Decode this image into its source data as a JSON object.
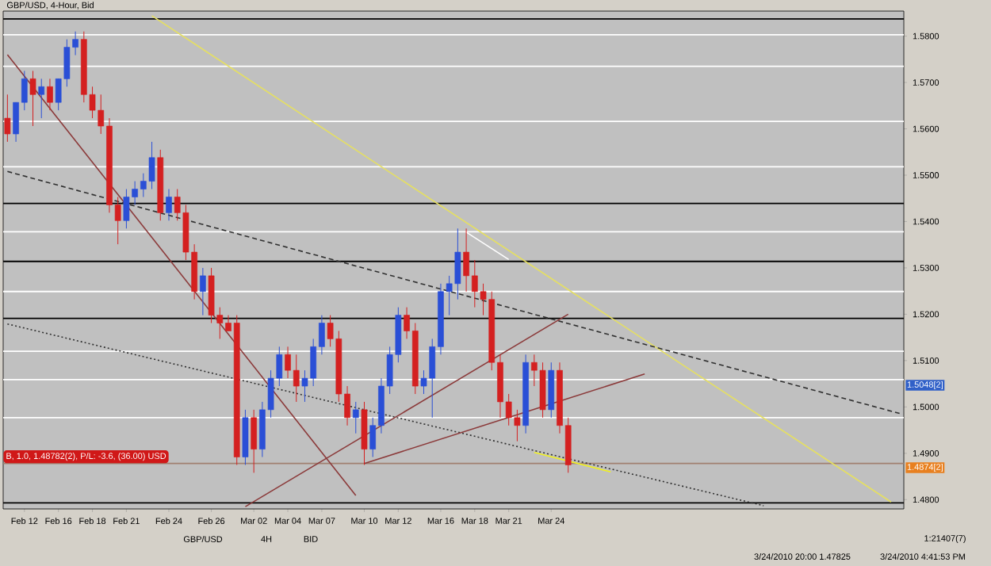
{
  "chart_data": {
    "type": "candlestick",
    "title": "GBP/USD, 4-Hour, Bid",
    "categories": [
      null,
      null,
      "Feb 12",
      null,
      null,
      null,
      "Feb 16",
      null,
      null,
      null,
      "Feb 18",
      null,
      null,
      null,
      "Feb 21",
      null,
      null,
      null,
      null,
      "Feb 24",
      null,
      null,
      null,
      null,
      "Feb 26",
      null,
      null,
      null,
      null,
      "Mar 02",
      null,
      null,
      null,
      "Mar 04",
      null,
      null,
      null,
      "Mar 07",
      null,
      null,
      null,
      null,
      "Mar 10",
      null,
      null,
      null,
      "Mar 12",
      null,
      null,
      null,
      null,
      "Mar 16",
      null,
      null,
      null,
      "Mar 18",
      null,
      null,
      null,
      "Mar 21",
      null,
      null,
      null,
      null,
      "Mar 24",
      null,
      null,
      null,
      null,
      null,
      null,
      null,
      null,
      null,
      null,
      null,
      null,
      null,
      null,
      null,
      null,
      null,
      null,
      null,
      null,
      null,
      null,
      null,
      null,
      null,
      null,
      null,
      null,
      null,
      null,
      null,
      null,
      null,
      null,
      null,
      null,
      null,
      null,
      null,
      null,
      null
    ],
    "ohlc": [
      [
        1.5623,
        1.5674,
        1.5572,
        1.5589
      ],
      [
        1.5589,
        1.5657,
        1.5572,
        1.5657
      ],
      [
        1.5657,
        1.5725,
        1.564,
        1.5708
      ],
      [
        1.5708,
        1.5725,
        1.5606,
        1.5674
      ],
      [
        1.5674,
        1.5708,
        1.5623,
        1.5691
      ],
      [
        1.5691,
        1.5708,
        1.564,
        1.5657
      ],
      [
        1.5657,
        1.5708,
        1.564,
        1.5708
      ],
      [
        1.5708,
        1.5793,
        1.5691,
        1.5776
      ],
      [
        1.5776,
        1.581,
        1.5759,
        1.5793
      ],
      [
        1.5793,
        1.581,
        1.5657,
        1.5674
      ],
      [
        1.5674,
        1.5691,
        1.5623,
        1.564
      ],
      [
        1.564,
        1.5674,
        1.5589,
        1.5606
      ],
      [
        1.5606,
        1.5623,
        1.5419,
        1.5436
      ],
      [
        1.5436,
        1.5453,
        1.5351,
        1.5402
      ],
      [
        1.5402,
        1.547,
        1.5385,
        1.5453
      ],
      [
        1.5453,
        1.5487,
        1.5436,
        1.547
      ],
      [
        1.547,
        1.5504,
        1.5453,
        1.5487
      ],
      [
        1.5487,
        1.5572,
        1.547,
        1.5538
      ],
      [
        1.5538,
        1.5555,
        1.5402,
        1.5419
      ],
      [
        1.5419,
        1.547,
        1.5402,
        1.5453
      ],
      [
        1.5453,
        1.547,
        1.5402,
        1.5419
      ],
      [
        1.5419,
        1.5436,
        1.5317,
        1.5334
      ],
      [
        1.5334,
        1.5351,
        1.5232,
        1.5249
      ],
      [
        1.5249,
        1.53,
        1.5198,
        1.5283
      ],
      [
        1.5283,
        1.53,
        1.5181,
        1.5198
      ],
      [
        1.5198,
        1.5215,
        1.5147,
        1.5181
      ],
      [
        1.5181,
        1.5198,
        1.5164,
        1.5164
      ],
      [
        1.5181,
        1.5198,
        1.4875,
        1.4892
      ],
      [
        1.4892,
        1.4994,
        1.4875,
        1.4977
      ],
      [
        1.4977,
        1.4994,
        1.4858,
        1.4909
      ],
      [
        1.4909,
        1.5011,
        1.4892,
        1.4994
      ],
      [
        1.4994,
        1.5079,
        1.4977,
        1.5062
      ],
      [
        1.5062,
        1.513,
        1.5045,
        1.5113
      ],
      [
        1.5113,
        1.513,
        1.5062,
        1.5079
      ],
      [
        1.5079,
        1.5113,
        1.5011,
        1.5045
      ],
      [
        1.5045,
        1.5079,
        1.5011,
        1.5062
      ],
      [
        1.5062,
        1.5147,
        1.5045,
        1.513
      ],
      [
        1.513,
        1.5198,
        1.5113,
        1.5181
      ],
      [
        1.5181,
        1.5198,
        1.513,
        1.5147
      ],
      [
        1.5147,
        1.5164,
        1.5011,
        1.5028
      ],
      [
        1.5028,
        1.5045,
        1.496,
        1.4977
      ],
      [
        1.4977,
        1.5011,
        1.4943,
        1.4994
      ],
      [
        1.4994,
        1.5011,
        1.4875,
        1.4909
      ],
      [
        1.4909,
        1.4977,
        1.4892,
        1.496
      ],
      [
        1.496,
        1.5062,
        1.4943,
        1.5045
      ],
      [
        1.5045,
        1.513,
        1.5028,
        1.5113
      ],
      [
        1.5113,
        1.5215,
        1.5096,
        1.5198
      ],
      [
        1.5198,
        1.5215,
        1.5147,
        1.5164
      ],
      [
        1.5164,
        1.5181,
        1.5028,
        1.5045
      ],
      [
        1.5045,
        1.5079,
        1.5028,
        1.5062
      ],
      [
        1.5062,
        1.5147,
        1.4977,
        1.513
      ],
      [
        1.513,
        1.5266,
        1.5113,
        1.5249
      ],
      [
        1.5249,
        1.5283,
        1.5198,
        1.5266
      ],
      [
        1.5266,
        1.5385,
        1.5232,
        1.5334
      ],
      [
        1.5334,
        1.5385,
        1.5249,
        1.5283
      ],
      [
        1.5283,
        1.5317,
        1.5215,
        1.5249
      ],
      [
        1.5249,
        1.5266,
        1.5198,
        1.5232
      ],
      [
        1.5232,
        1.5249,
        1.5079,
        1.5096
      ],
      [
        1.5096,
        1.5113,
        1.4977,
        1.5011
      ],
      [
        1.5011,
        1.5028,
        1.496,
        1.4977
      ],
      [
        1.4977,
        1.4994,
        1.4926,
        1.496
      ],
      [
        1.496,
        1.5113,
        1.4943,
        1.5096
      ],
      [
        1.5096,
        1.5113,
        1.5045,
        1.5079
      ],
      [
        1.5079,
        1.5096,
        1.4977,
        1.4994
      ],
      [
        1.4994,
        1.5096,
        1.4977,
        1.5079
      ],
      [
        1.5079,
        1.5096,
        1.4943,
        1.496
      ],
      [
        1.496,
        1.4977,
        1.4858,
        1.4875
      ],
      null,
      null,
      null,
      null,
      null,
      null,
      null,
      null,
      null,
      null,
      null,
      null,
      null,
      null,
      null,
      null,
      null,
      null,
      null,
      null,
      null,
      null,
      null,
      null,
      null,
      null,
      null,
      null,
      null,
      null,
      null,
      null,
      null,
      null,
      null,
      null,
      null,
      null,
      null
    ],
    "colors": [
      "#d42020",
      "#2a4fd6",
      "#2a4fd6",
      "#d42020",
      "#2a4fd6",
      "#d42020",
      "#2a4fd6",
      "#2a4fd6",
      "#2a4fd6",
      "#d42020",
      "#d42020",
      "#d42020",
      "#d42020",
      "#d42020",
      "#2a4fd6",
      "#2a4fd6",
      "#2a4fd6",
      "#2a4fd6",
      "#d42020",
      "#2a4fd6",
      "#d42020",
      "#d42020",
      "#d42020",
      "#2a4fd6",
      "#d42020",
      "#d42020",
      "#d42020",
      "#d42020",
      "#2a4fd6",
      "#d42020",
      "#2a4fd6",
      "#2a4fd6",
      "#2a4fd6",
      "#d42020",
      "#d42020",
      "#2a4fd6",
      "#2a4fd6",
      "#2a4fd6",
      "#d42020",
      "#d42020",
      "#d42020",
      "#2a4fd6",
      "#d42020",
      "#2a4fd6",
      "#2a4fd6",
      "#2a4fd6",
      "#2a4fd6",
      "#d42020",
      "#d42020",
      "#2a4fd6",
      "#2a4fd6",
      "#2a4fd6",
      "#2a4fd6",
      "#2a4fd6",
      "#d42020",
      "#d42020",
      "#d42020",
      "#d42020",
      "#d42020",
      "#d42020",
      "#d42020",
      "#2a4fd6",
      "#d42020",
      "#d42020",
      "#2a4fd6",
      "#d42020",
      "#d42020",
      null,
      null,
      null,
      null,
      null,
      null,
      null,
      null,
      null,
      null,
      null,
      null,
      null,
      null,
      null,
      null,
      null,
      null,
      null,
      null,
      null,
      null,
      null,
      null,
      null,
      null,
      null,
      null,
      null,
      null,
      null,
      null,
      null,
      null,
      null,
      null,
      null,
      null,
      null
    ],
    "series": [
      {
        "type": "line",
        "color": "#e6e060",
        "line_style": "solid",
        "values": [
          null,
          null,
          null,
          null,
          null,
          null,
          null,
          null,
          null,
          null,
          null,
          null,
          null,
          null,
          null,
          null,
          null,
          1.5844,
          null,
          null,
          null,
          null,
          null,
          null,
          null,
          null,
          null,
          null,
          null,
          null,
          null,
          null,
          null,
          null,
          null,
          null,
          null,
          null,
          null,
          null,
          null,
          null,
          null,
          null,
          null,
          null,
          null,
          null,
          null,
          null,
          null,
          null,
          null,
          null,
          null,
          null,
          null,
          null,
          null,
          null,
          null,
          null,
          null,
          null,
          null,
          null,
          null,
          null,
          null,
          null,
          null,
          null,
          null,
          null,
          null,
          null,
          null,
          null,
          null,
          null,
          null,
          null,
          null,
          null,
          null,
          null,
          null,
          null,
          null,
          null,
          null,
          null,
          null,
          null,
          null,
          null,
          null,
          null,
          null,
          null,
          null,
          null,
          null,
          null,
          1.4795,
          null
        ]
      },
      {
        "type": "line",
        "color": "#303030",
        "line_style": "dashed",
        "values": [
          1.5508,
          null,
          null,
          null,
          null,
          null,
          null,
          null,
          null,
          null,
          null,
          null,
          null,
          null,
          null,
          null,
          null,
          null,
          null,
          null,
          null,
          null,
          null,
          null,
          null,
          null,
          null,
          null,
          null,
          null,
          null,
          null,
          null,
          null,
          null,
          null,
          null,
          null,
          null,
          null,
          null,
          null,
          null,
          null,
          null,
          null,
          null,
          null,
          null,
          null,
          null,
          null,
          null,
          null,
          null,
          null,
          null,
          null,
          null,
          null,
          null,
          null,
          null,
          null,
          null,
          null,
          null,
          null,
          null,
          null,
          null,
          null,
          null,
          null,
          null,
          null,
          null,
          null,
          null,
          null,
          null,
          null,
          null,
          null,
          null,
          null,
          null,
          null,
          null,
          null,
          null,
          null,
          null,
          null,
          null,
          null,
          null,
          null,
          null,
          null,
          null,
          null,
          null,
          null,
          null,
          1.4986
        ]
      },
      {
        "type": "line",
        "color": "#303030",
        "line_style": "dotted",
        "values": [
          1.5179,
          null,
          null,
          null,
          null,
          null,
          null,
          null,
          null,
          null,
          null,
          null,
          null,
          null,
          null,
          null,
          null,
          null,
          null,
          null,
          null,
          null,
          null,
          null,
          null,
          null,
          null,
          null,
          null,
          null,
          null,
          null,
          null,
          null,
          null,
          null,
          null,
          null,
          null,
          null,
          null,
          null,
          null,
          null,
          null,
          null,
          null,
          null,
          null,
          null,
          null,
          null,
          null,
          null,
          null,
          null,
          null,
          null,
          null,
          null,
          null,
          null,
          null,
          null,
          null,
          null,
          null,
          null,
          null,
          null,
          null,
          null,
          null,
          null,
          null,
          null,
          null,
          null,
          null,
          null,
          null,
          null,
          null,
          null,
          null,
          null,
          null,
          null,
          null,
          1.4787,
          null,
          null,
          null,
          null,
          null,
          null,
          null,
          null,
          null,
          null,
          null,
          null,
          null,
          null,
          null,
          null
        ]
      },
      {
        "type": "line",
        "color": "#8b3a3a",
        "line_style": "solid",
        "values": [
          1.576,
          null,
          null,
          null,
          null,
          null,
          null,
          null,
          null,
          null,
          null,
          null,
          null,
          null,
          null,
          null,
          null,
          null,
          null,
          null,
          null,
          null,
          null,
          null,
          null,
          null,
          null,
          null,
          null,
          null,
          null,
          null,
          null,
          null,
          null,
          null,
          null,
          null,
          null,
          null,
          null,
          1.4809,
          null,
          null,
          null,
          null,
          null,
          null,
          null,
          null,
          null,
          null,
          null,
          null,
          null,
          null,
          null,
          null,
          null,
          null,
          null,
          null,
          null,
          null,
          null,
          null,
          null,
          null,
          null,
          null,
          null,
          null,
          null,
          null,
          null,
          null,
          null,
          null,
          null,
          null,
          null,
          null,
          null,
          null,
          null,
          null,
          null,
          null,
          null,
          null,
          null,
          null,
          null,
          null,
          null,
          null,
          null,
          null,
          null,
          null,
          null,
          null,
          null,
          null,
          null,
          null
        ]
      },
      {
        "type": "line",
        "color": "#8b3a3a",
        "line_style": "solid",
        "values": [
          null,
          null,
          null,
          null,
          null,
          null,
          null,
          null,
          null,
          null,
          null,
          null,
          null,
          null,
          null,
          null,
          null,
          null,
          null,
          null,
          null,
          null,
          null,
          null,
          null,
          null,
          null,
          null,
          1.4785,
          null,
          null,
          null,
          null,
          null,
          null,
          null,
          null,
          null,
          null,
          null,
          null,
          null,
          null,
          null,
          null,
          null,
          null,
          null,
          null,
          null,
          null,
          null,
          null,
          null,
          null,
          null,
          null,
          null,
          null,
          null,
          null,
          null,
          null,
          null,
          null,
          null,
          1.52,
          null,
          null,
          null,
          null,
          null,
          null,
          null,
          null,
          null,
          null,
          null,
          null,
          null,
          null,
          null,
          null,
          null,
          null,
          null,
          null,
          null,
          null,
          null,
          null,
          null,
          null,
          null,
          null,
          null,
          null,
          null,
          null,
          null,
          null,
          null,
          null,
          null,
          null,
          null
        ]
      },
      {
        "type": "line",
        "color": "#8b3a3a",
        "line_style": "solid",
        "values": [
          null,
          null,
          null,
          null,
          null,
          null,
          null,
          null,
          null,
          null,
          null,
          null,
          null,
          null,
          null,
          null,
          null,
          null,
          null,
          null,
          null,
          null,
          null,
          null,
          null,
          null,
          null,
          null,
          null,
          null,
          null,
          null,
          null,
          null,
          null,
          null,
          null,
          null,
          null,
          null,
          null,
          null,
          1.4878,
          null,
          null,
          null,
          null,
          null,
          null,
          null,
          null,
          null,
          null,
          null,
          null,
          null,
          null,
          null,
          null,
          null,
          null,
          null,
          null,
          null,
          null,
          null,
          null,
          null,
          null,
          null,
          null,
          null,
          null,
          null,
          null,
          1.5071,
          null,
          null,
          null,
          null,
          null,
          null,
          null,
          null,
          null,
          null,
          null,
          null,
          null,
          null,
          null,
          null,
          null,
          null,
          null,
          null,
          null,
          null,
          null,
          null,
          null,
          null,
          null,
          null,
          null,
          null
        ]
      },
      {
        "type": "line",
        "color": "#ffffff",
        "line_style": "solid",
        "values": [
          null,
          null,
          null,
          null,
          null,
          null,
          null,
          null,
          null,
          null,
          null,
          null,
          null,
          null,
          null,
          null,
          null,
          null,
          null,
          null,
          null,
          null,
          null,
          null,
          null,
          null,
          null,
          null,
          null,
          null,
          null,
          null,
          null,
          null,
          null,
          null,
          null,
          null,
          null,
          null,
          null,
          null,
          null,
          null,
          null,
          null,
          null,
          null,
          null,
          null,
          null,
          null,
          null,
          null,
          1.5377,
          null,
          null,
          null,
          null,
          1.5318,
          null,
          null,
          null,
          null,
          null,
          null,
          null,
          null,
          null,
          null,
          null,
          null,
          null,
          null,
          null,
          null,
          null,
          null,
          null,
          null,
          null,
          null,
          null,
          null,
          null,
          null,
          null,
          null,
          null,
          null,
          null,
          null,
          null,
          null,
          null,
          null,
          null,
          null,
          null,
          null,
          null,
          null,
          null,
          null,
          null,
          null
        ]
      },
      {
        "type": "line",
        "color": "#f0f020",
        "line_style": "solid",
        "values": [
          null,
          null,
          null,
          null,
          null,
          null,
          null,
          null,
          null,
          null,
          null,
          null,
          null,
          null,
          null,
          null,
          null,
          null,
          null,
          null,
          null,
          null,
          null,
          null,
          null,
          null,
          null,
          null,
          null,
          null,
          null,
          null,
          null,
          null,
          null,
          null,
          null,
          null,
          null,
          null,
          null,
          null,
          null,
          null,
          null,
          null,
          null,
          null,
          null,
          null,
          null,
          null,
          null,
          null,
          null,
          null,
          null,
          null,
          null,
          null,
          null,
          null,
          1.4902,
          null,
          null,
          null,
          null,
          null,
          null,
          null,
          null,
          1.486,
          null,
          null,
          null,
          null,
          null,
          null,
          null,
          null,
          null,
          null,
          null,
          null,
          null,
          null,
          null,
          null,
          null,
          null,
          null,
          null,
          null,
          null,
          null,
          null,
          null,
          null,
          null,
          null,
          null,
          null,
          null,
          null,
          null,
          null
        ]
      }
    ],
    "ref_lines": [
      {
        "axis": "y",
        "value": 1.5837,
        "color": "#000000"
      },
      {
        "axis": "y",
        "value": 1.5439,
        "color": "#000000"
      },
      {
        "axis": "y",
        "value": 1.5314,
        "color": "#000000"
      },
      {
        "axis": "y",
        "value": 1.5191,
        "color": "#000000"
      },
      {
        "axis": "y",
        "value": 1.4793,
        "color": "#000000"
      },
      {
        "axis": "y",
        "value": 1.5803,
        "color": "#ffffff"
      },
      {
        "axis": "y",
        "value": 1.5735,
        "color": "#ffffff"
      },
      {
        "axis": "y",
        "value": 1.5616,
        "color": "#ffffff"
      },
      {
        "axis": "y",
        "value": 1.5518,
        "color": "#ffffff"
      },
      {
        "axis": "y",
        "value": 1.5378,
        "color": "#ffffff"
      },
      {
        "axis": "y",
        "value": 1.5249,
        "color": "#ffffff"
      },
      {
        "axis": "y",
        "value": 1.512,
        "color": "#ffffff"
      },
      {
        "axis": "y",
        "value": 1.5059,
        "color": "#ffffff"
      },
      {
        "axis": "y",
        "value": 1.4977,
        "color": "#ffffff"
      },
      {
        "axis": "y",
        "value": 1.48782,
        "color": "#a08070",
        "label": "B, 1.0, 1.48782(2), P/L: -3.6, (36.00) USD"
      }
    ],
    "annotations": [
      "1.5048[2]",
      "1.4874[2]",
      "GBP/USD",
      "4H",
      "BID",
      "1:21407(7)",
      "3/24/2010 20:00  1.47825",
      "3/24/2010 4:41:53 PM"
    ],
    "ylim": [
      1.478,
      1.5854
    ],
    "yticks": [
      {
        "value": 1.48,
        "label": "1.4800"
      },
      {
        "value": 1.49,
        "label": "1.4900"
      },
      {
        "value": 1.5,
        "label": "1.5000"
      },
      {
        "value": 1.51,
        "label": "1.5100"
      },
      {
        "value": 1.52,
        "label": "1.5200"
      },
      {
        "value": 1.53,
        "label": "1.5300"
      },
      {
        "value": 1.54,
        "label": "1.5400"
      },
      {
        "value": 1.55,
        "label": "1.5500"
      },
      {
        "value": 1.56,
        "label": "1.5600"
      },
      {
        "value": 1.57,
        "label": "1.5700"
      },
      {
        "value": 1.58,
        "label": "1.5800"
      }
    ]
  }
}
